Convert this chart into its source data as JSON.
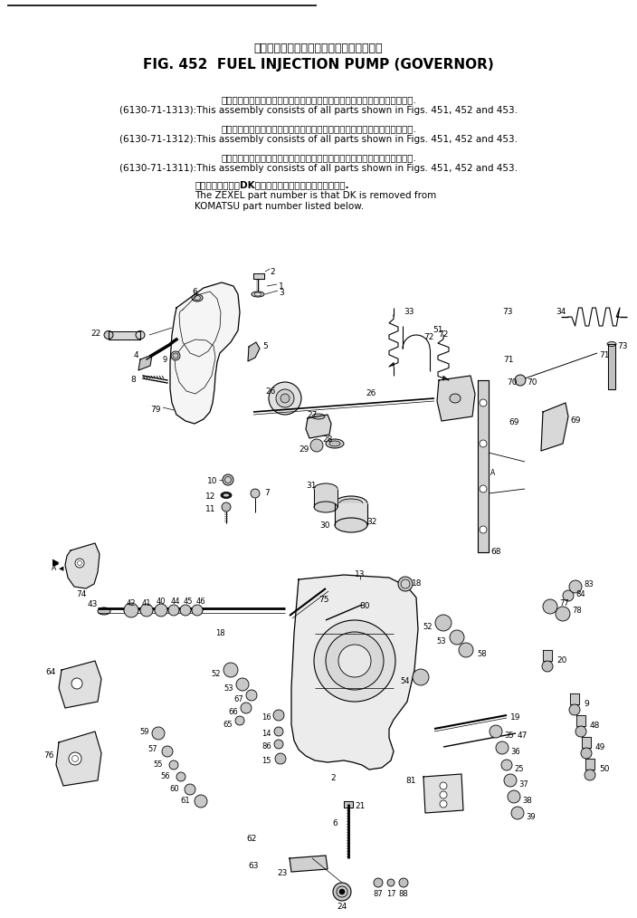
{
  "title_japanese": "フェエルインジェクションポンプ　ガバナ",
  "title_english": "FIG. 452  FUEL INJECTION PUMP (GOVERNOR)",
  "note1_jp": "このアセンブリの構成部品は第４５１、４５２図および第４５３図を見ます.",
  "note1_pn": "(6130-71-1313)",
  "note1_en": "This assembly consists of all parts shown in Figs. 451, 452 and 453.",
  "note2_jp": "このアセンブリの構成部品は第４５１、４５２図および第４５３図を見ます.",
  "note2_pn": "(6130-71-1312)",
  "note2_en": "This assembly consists of all parts shown in Figs. 451, 452 and 453.",
  "note3_jp": "このアセンブリの構成部品は第４５１、４５２図および第４５３図を見ます.",
  "note3_pn": "(6130-71-1311)",
  "note3_en": "This assembly consists of all parts shown in Figs. 451, 452 and 453.",
  "zexel_jp": "最後のメーカ記号DKを除いたものがゼクセルの品番です.",
  "zexel_en1": "The ZEXEL part number is that DK is removed from",
  "zexel_en2": "KOMATSU part number listed below.",
  "bg_color": "#ffffff",
  "fig_width": 7.04,
  "fig_height": 10.14,
  "dpi": 100
}
